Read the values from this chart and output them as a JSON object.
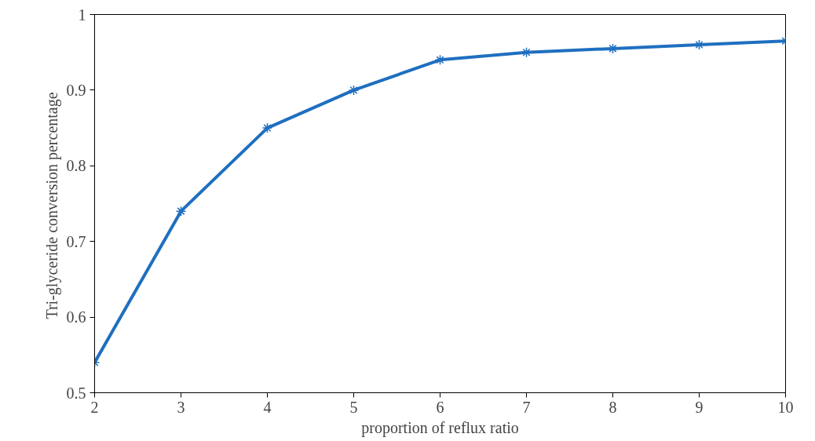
{
  "chart_data": {
    "type": "line",
    "xlabel": "proportion of reflux ratio",
    "ylabel": "Tri-glyceride conversion  percentage",
    "x": [
      2,
      3,
      4,
      5,
      6,
      7,
      8,
      9,
      10
    ],
    "series": [
      {
        "color": "#1f6fc0",
        "values": [
          0.54,
          0.74,
          0.85,
          0.9,
          0.94,
          0.95,
          0.955,
          0.96,
          0.965
        ]
      }
    ],
    "xlim": [
      2,
      10
    ],
    "xticks": [
      2,
      3,
      4,
      5,
      6,
      7,
      8,
      9,
      10
    ],
    "ylim": [
      0.5,
      1
    ],
    "yticks": [
      0.5,
      0.6,
      0.7,
      0.8,
      0.9,
      1
    ],
    "grid": false,
    "marker": "cross",
    "line_style": "solid"
  }
}
